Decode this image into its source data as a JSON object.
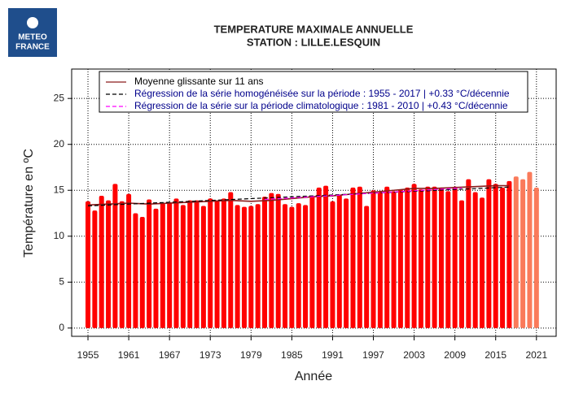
{
  "logo": [
    "METEO",
    "FRANCE"
  ],
  "chart_data": {
    "type": "bar",
    "title": [
      "TEMPERATURE MAXIMALE ANNUELLE",
      "STATION : LILLE.LESQUIN"
    ],
    "xlabel": "Année",
    "ylabel": "Température en ºC",
    "xlim": [
      1952.6,
      2023.9
    ],
    "ylim": [
      -0.9,
      28.2
    ],
    "xticks": [
      1955,
      1961,
      1967,
      1973,
      1979,
      1985,
      1991,
      1997,
      2003,
      2009,
      2015,
      2021
    ],
    "yticks": [
      0,
      5,
      10,
      15,
      20,
      25
    ],
    "grid": true,
    "bars": [
      {
        "color": "#ff0000",
        "x": [
          1955,
          1956,
          1957,
          1958,
          1959,
          1960,
          1961,
          1962,
          1963,
          1964,
          1965,
          1966,
          1967,
          1968,
          1969,
          1970,
          1971,
          1972,
          1973,
          1974,
          1975,
          1976,
          1977,
          1978,
          1979,
          1980,
          1981,
          1982,
          1983,
          1984,
          1985,
          1986,
          1987,
          1988,
          1989,
          1990,
          1991,
          1992,
          1993,
          1994,
          1995,
          1996,
          1997,
          1998,
          1999,
          2000,
          2001,
          2002,
          2003,
          2004,
          2005,
          2006,
          2007,
          2008,
          2009,
          2010,
          2011,
          2012,
          2013,
          2014,
          2015,
          2016,
          2017
        ],
        "values": [
          13.8,
          12.8,
          14.4,
          13.9,
          15.7,
          13.8,
          14.6,
          12.5,
          12.1,
          14.0,
          13.0,
          13.6,
          13.7,
          14.1,
          13.4,
          13.9,
          13.9,
          13.3,
          14.1,
          13.9,
          14.1,
          14.8,
          13.4,
          13.2,
          13.3,
          13.5,
          14.3,
          14.7,
          14.6,
          13.5,
          13.2,
          13.6,
          13.4,
          14.4,
          15.3,
          15.5,
          13.8,
          14.5,
          14.1,
          15.3,
          15.4,
          13.3,
          15.0,
          14.8,
          15.4,
          14.9,
          15.1,
          15.3,
          15.7,
          15.1,
          15.4,
          15.4,
          15.3,
          14.9,
          15.4,
          13.9,
          16.2,
          14.8,
          14.2,
          16.2,
          15.7,
          15.3,
          16.0
        ]
      },
      {
        "color": "#fa7a5a",
        "x": [
          2018,
          2019,
          2020,
          2021
        ],
        "values": [
          16.5,
          16.2,
          17.0,
          15.3
        ]
      }
    ],
    "lines": [
      {
        "name": "Moyenne glissante sur 11 ans",
        "color": "#8b1a1a",
        "dash": false,
        "label_color": "#000000",
        "x": [
          1955,
          1958,
          1961,
          1964,
          1967,
          1970,
          1973,
          1976,
          1979,
          1982,
          1985,
          1988,
          1991,
          1994,
          1997,
          2000,
          2003,
          2006,
          2009,
          2012,
          2015,
          2017
        ],
        "values": [
          13.4,
          13.5,
          13.6,
          13.5,
          13.6,
          13.7,
          13.8,
          13.9,
          13.8,
          13.9,
          14.1,
          14.3,
          14.4,
          14.6,
          14.8,
          15.0,
          15.2,
          15.2,
          15.3,
          15.4,
          15.5,
          15.5
        ]
      },
      {
        "name": "Régression de la série homogénéisée sur la période : 1955 - 2017 | +0.33 °C/décennie",
        "color": "#000000",
        "dash": true,
        "label_color": "#00008b",
        "x": [
          1955,
          2017
        ],
        "values": [
          13.3,
          15.35
        ]
      },
      {
        "name": "Régression de la série sur la période climatologique : 1981 - 2010 | +0.43 °C/décennie",
        "color": "#ff00ff",
        "dash": true,
        "label_color": "#00008b",
        "x": [
          1981,
          2010
        ],
        "values": [
          14.0,
          15.25
        ]
      }
    ]
  }
}
